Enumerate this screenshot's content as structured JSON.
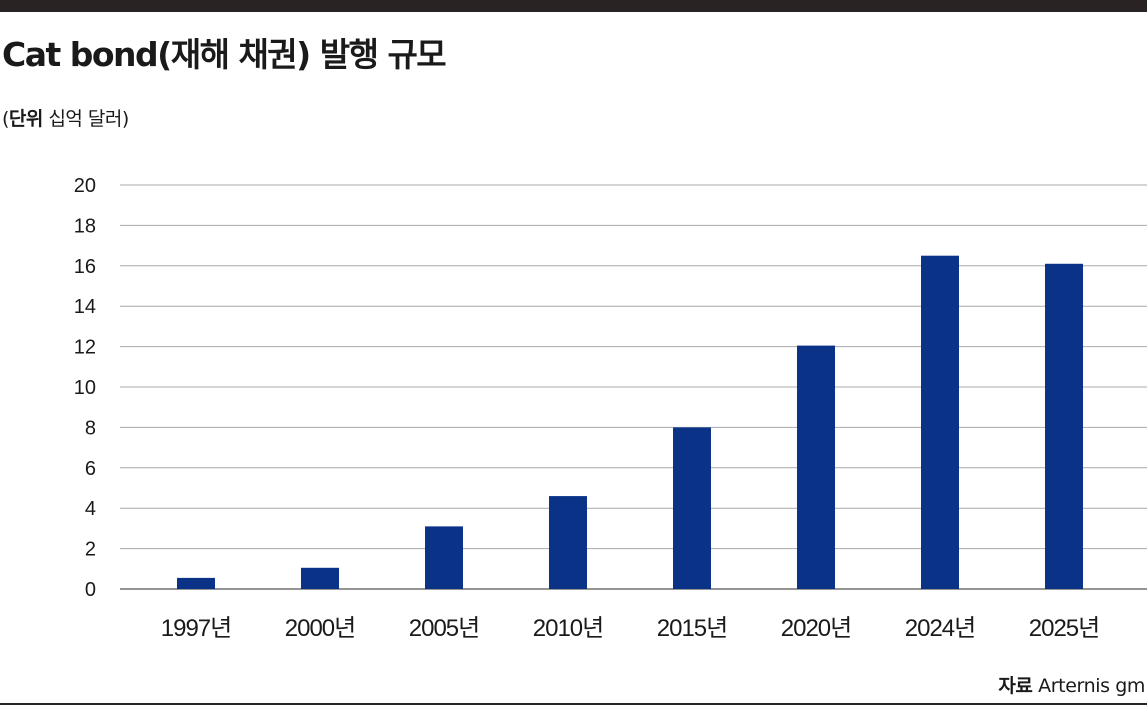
{
  "header": {
    "title": "Cat bond(재해 채권) 발행 규모",
    "unit_label": "단위",
    "unit_value": "십억 달러"
  },
  "footer": {
    "source_label": "자료",
    "source_value": "Arternis gm"
  },
  "colors": {
    "bar": "#0a3388",
    "grid": "#a9a9a9"
  },
  "chart_data": {
    "type": "bar",
    "categories": [
      "1997년",
      "2000년",
      "2005년",
      "2010년",
      "2015년",
      "2020년",
      "2024년",
      "2025년"
    ],
    "series": [
      {
        "values": [
          0.55,
          1.05,
          3.1,
          4.6,
          8.0,
          12.05,
          16.5,
          16.1
        ]
      }
    ],
    "title": "Cat bond(재해 채권) 발행 규모",
    "xlabel": "",
    "ylabel": "",
    "ylim": [
      0,
      20
    ],
    "yticks": [
      "0",
      "2",
      "4",
      "6",
      "8",
      "10",
      "12",
      "14",
      "16",
      "18",
      "20"
    ],
    "grid": true,
    "legend": "none"
  }
}
